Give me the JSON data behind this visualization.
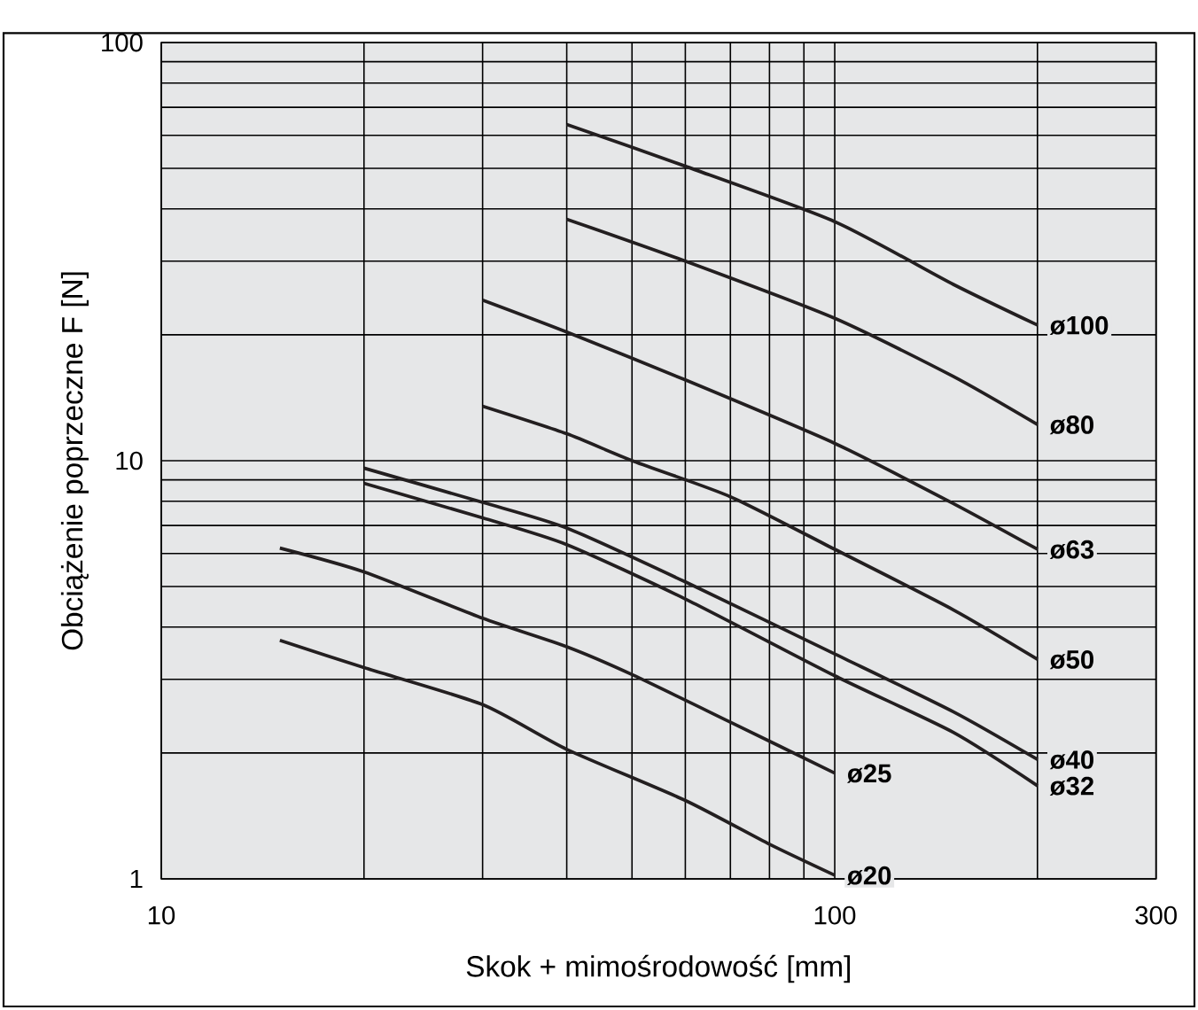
{
  "chart_data": {
    "type": "line",
    "xlabel": "Skok + mimośrodowość [mm]",
    "ylabel": "Obciążenie poprzeczne F [N]",
    "log": "xy",
    "grid": true,
    "marker": "none",
    "line_style": "solid",
    "xlim": [
      10,
      300
    ],
    "ylim": [
      1,
      100
    ],
    "xticks": [
      10,
      100,
      300
    ],
    "yticks": [
      1,
      10,
      100
    ],
    "series": [
      {
        "name": "ø100",
        "color": "#231f20",
        "x": [
          40,
          60,
          100,
          150,
          200
        ],
        "values": [
          63.7,
          50.6,
          37.3,
          26.4,
          21.1
        ]
      },
      {
        "name": "ø80",
        "color": "#231f20",
        "x": [
          40,
          60,
          100,
          150,
          200
        ],
        "values": [
          37.8,
          30,
          21.9,
          15.9,
          12.2
        ]
      },
      {
        "name": "ø63",
        "color": "#231f20",
        "x": [
          30,
          40,
          60,
          100,
          150,
          200
        ],
        "values": [
          24.2,
          20.3,
          15.6,
          11,
          7.9,
          6.14
        ]
      },
      {
        "name": "ø50",
        "color": "#231f20",
        "x": [
          30,
          40,
          50,
          70,
          100,
          150,
          200
        ],
        "values": [
          13.5,
          11.6,
          10,
          8.2,
          6.14,
          4.4,
          3.35
        ]
      },
      {
        "name": "ø40",
        "color": "#231f20",
        "x": [
          20,
          30,
          40,
          60,
          100,
          150,
          200
        ],
        "values": [
          9.6,
          7.95,
          6.9,
          5.13,
          3.45,
          2.51,
          1.93
        ]
      },
      {
        "name": "ø32",
        "color": "#231f20",
        "x": [
          20,
          30,
          40,
          60,
          100,
          150,
          200
        ],
        "values": [
          8.83,
          7.3,
          6.3,
          4.67,
          3.06,
          2.24,
          1.67
        ]
      },
      {
        "name": "ø25",
        "color": "#231f20",
        "x": [
          15,
          20,
          30,
          40,
          50,
          70,
          100
        ],
        "values": [
          6.18,
          5.42,
          4.2,
          3.59,
          3.08,
          2.37,
          1.79
        ]
      },
      {
        "name": "ø20",
        "color": "#231f20",
        "x": [
          15,
          20,
          30,
          40,
          60,
          80,
          100
        ],
        "values": [
          3.72,
          3.2,
          2.61,
          2.04,
          1.54,
          1.21,
          1.02
        ]
      }
    ]
  }
}
